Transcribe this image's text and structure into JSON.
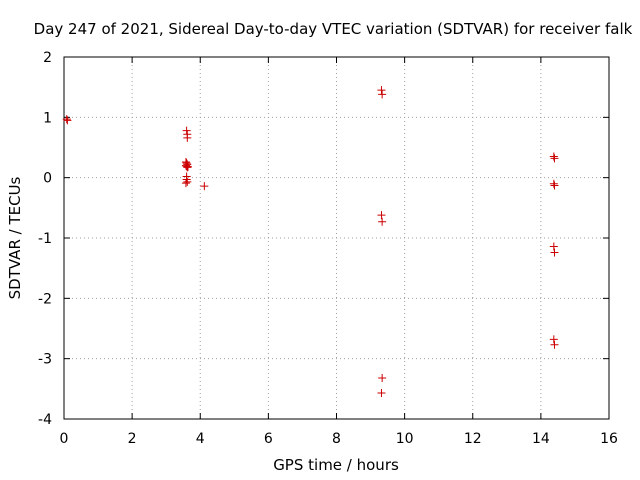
{
  "chart_data": {
    "type": "scatter",
    "title": "Day 247 of 2021, Sidereal Day-to-day VTEC variation (SDTVAR) for receiver falk",
    "xlabel": "GPS time / hours",
    "ylabel": "SDTVAR / TECUs",
    "xlim": [
      0,
      16
    ],
    "ylim": [
      -4,
      2
    ],
    "xticks": [
      "0",
      "2",
      "4",
      "6",
      "8",
      "10",
      "12",
      "14",
      "16"
    ],
    "yticks": [
      "2",
      "1",
      "0",
      "-1",
      "-2",
      "-3",
      "-4"
    ],
    "grid": true,
    "marker": "+",
    "color": "#cc0000",
    "series": [
      {
        "points": [
          [
            0.08,
            0.97
          ],
          [
            0.1,
            0.95
          ],
          [
            3.6,
            0.78
          ],
          [
            3.62,
            0.72
          ],
          [
            3.62,
            0.66
          ],
          [
            3.58,
            0.26
          ],
          [
            3.6,
            0.24
          ],
          [
            3.62,
            0.22
          ],
          [
            3.58,
            0.2
          ],
          [
            3.6,
            0.19
          ],
          [
            3.64,
            0.18
          ],
          [
            3.62,
            0.17
          ],
          [
            3.6,
            0.02
          ],
          [
            3.6,
            -0.03
          ],
          [
            3.62,
            -0.07
          ],
          [
            3.58,
            -0.09
          ],
          [
            4.12,
            -0.14
          ],
          [
            9.32,
            1.45
          ],
          [
            9.34,
            1.38
          ],
          [
            9.32,
            -0.62
          ],
          [
            9.34,
            -0.73
          ],
          [
            9.34,
            -3.32
          ],
          [
            9.32,
            -3.57
          ],
          [
            14.38,
            0.35
          ],
          [
            14.4,
            0.32
          ],
          [
            14.38,
            -0.1
          ],
          [
            14.4,
            -0.13
          ],
          [
            14.38,
            -1.14
          ],
          [
            14.4,
            -1.24
          ],
          [
            14.38,
            -2.68
          ],
          [
            14.4,
            -2.77
          ]
        ]
      }
    ]
  }
}
